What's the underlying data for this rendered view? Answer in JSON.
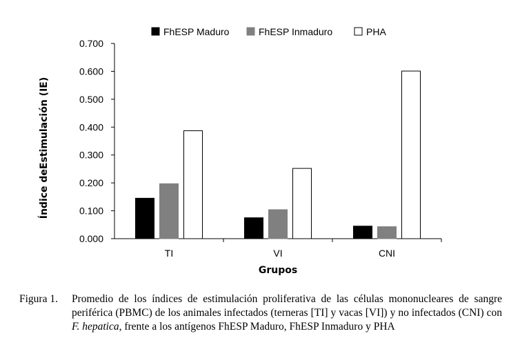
{
  "chart_data": {
    "type": "bar",
    "categories": [
      "TI",
      "VI",
      "CNI"
    ],
    "series": [
      {
        "name": "FhESP Maduro",
        "values": [
          0.145,
          0.075,
          0.045
        ],
        "color": "#000000"
      },
      {
        "name": "FhESP Inmaduro",
        "values": [
          0.197,
          0.104,
          0.043
        ],
        "color": "#808080"
      },
      {
        "name": "PHA",
        "values": [
          0.387,
          0.252,
          0.601
        ],
        "color": "#ffffff"
      }
    ],
    "title": "",
    "xlabel": "Grupos",
    "ylabel": "Índice deEstimulación (IE)",
    "ylim": [
      0,
      0.7
    ],
    "yticks": [
      "0.000",
      "0.100",
      "0.200",
      "0.300",
      "0.400",
      "0.500",
      "0.600",
      "0.700"
    ],
    "grid": false,
    "legend": "top-center"
  },
  "caption": {
    "label": "Figura 1.",
    "text_before": "Promedio de los índices de estimulación proliferativa de las células mononucleares de sangre periférica (PBMC) de los animales infectados (terneras [TI] y vacas [VI]) y no infectados (CNI) con ",
    "italic": "F. hepatica",
    "text_after": ", frente a los antígenos FhESP Maduro, FhESP Inmaduro y PHA"
  }
}
